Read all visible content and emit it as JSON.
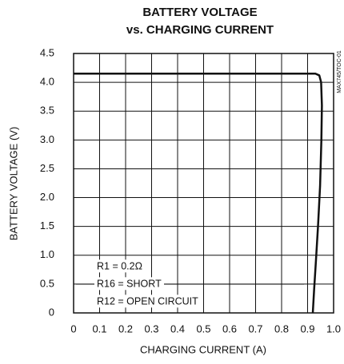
{
  "chart_data": {
    "type": "line",
    "title": "BATTERY VOLTAGE",
    "subtitle": "vs. CHARGING CURRENT",
    "x_label": "CHARGING CURRENT (A)",
    "y_label": "BATTERY VOLTAGE (V)",
    "side_note": "MAX745/TOC-01",
    "annotations": [
      "R1 = 0.2Ω",
      "R16 = SHORT",
      "R12 = OPEN CIRCUIT"
    ],
    "series": [
      {
        "color": "#111111",
        "x": [
          0,
          0.93,
          0.945,
          0.952,
          0.955,
          0.953,
          0.948,
          0.94,
          0.932,
          0.925,
          0.92
        ],
        "values": [
          4.15,
          4.15,
          4.12,
          4.0,
          3.6,
          3.0,
          2.2,
          1.5,
          0.9,
          0.4,
          0
        ]
      }
    ],
    "xlim": [
      0,
      1
    ],
    "xticks": [
      0,
      0.1,
      0.2,
      0.3,
      0.4,
      0.5,
      0.6,
      0.7,
      0.8,
      0.9,
      {
        "value": 1,
        "label": "1.0"
      }
    ],
    "ylim": [
      0,
      4.5
    ],
    "yticks": [
      0,
      0.5,
      {
        "value": 1,
        "label": "1.0"
      },
      1.5,
      {
        "value": 2,
        "label": "2.0"
      },
      2.5,
      {
        "value": 3,
        "label": "3.0"
      },
      3.5,
      {
        "value": 4,
        "label": "4.0"
      },
      4.5
    ],
    "grid": true
  }
}
